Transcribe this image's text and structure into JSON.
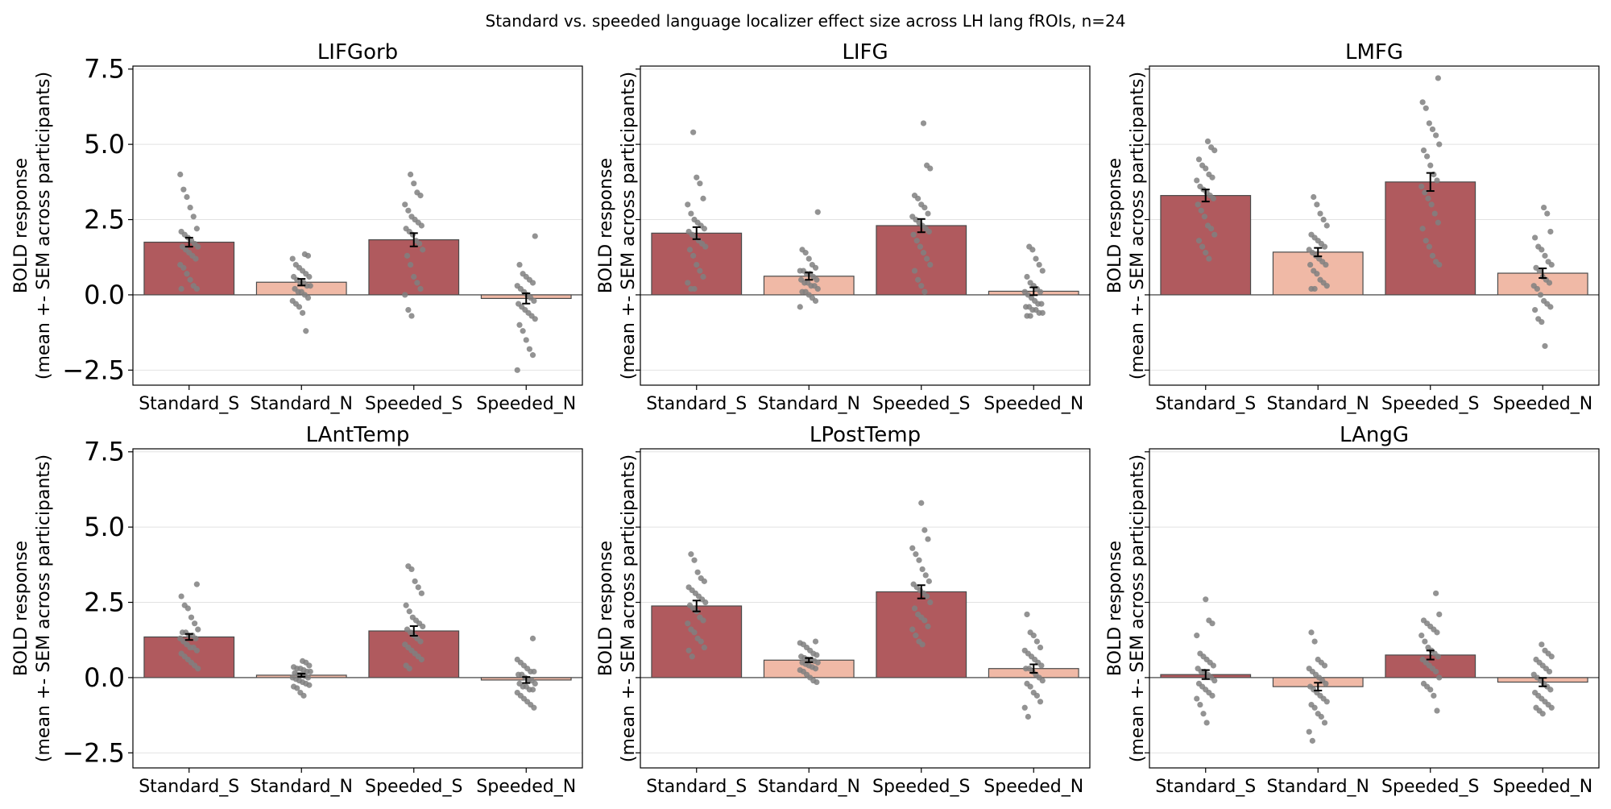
{
  "figure": {
    "suptitle": "Standard vs. speeded language localizer effect size across LH lang fROIs, n=24"
  },
  "chart_data": {
    "type": "bar",
    "title": "Standard vs. speeded language localizer effect size across LH lang fROIs, n=24",
    "categories": [
      "Standard_S",
      "Standard_N",
      "Speeded_S",
      "Speeded_N"
    ],
    "ylabel_line1": "BOLD response",
    "ylabel_line2": "(mean +- SEM across participants)",
    "ylim": [
      -3.0,
      7.6
    ],
    "yticks": [
      -2.5,
      0.0,
      2.5,
      5.0,
      7.5
    ],
    "ytick_labels": [
      "−2.5",
      "0.0",
      "2.5",
      "5.0",
      "7.5"
    ],
    "grid": true,
    "colors": {
      "sentence_bar": "#b05a5e",
      "nonword_bar": "#f0b9a6",
      "dot": "#808080",
      "bar_edge": "#4a4a4a",
      "grid": "#e2e2e2"
    },
    "panels": [
      {
        "title": "LIFGorb",
        "means": [
          1.75,
          0.42,
          1.83,
          -0.12
        ],
        "sems": [
          0.15,
          0.11,
          0.22,
          0.17
        ],
        "points": [
          [
            4.0,
            3.5,
            3.25,
            2.9,
            2.6,
            2.2,
            2.1,
            2.0,
            1.9,
            1.8,
            1.7,
            1.6,
            1.6,
            1.5,
            1.4,
            1.3,
            1.2,
            1.0,
            0.9,
            0.7,
            0.5,
            0.3,
            0.2,
            0.2
          ],
          [
            1.35,
            1.3,
            1.2,
            1.0,
            0.9,
            0.8,
            0.7,
            0.6,
            0.6,
            0.5,
            0.4,
            0.4,
            0.3,
            0.3,
            0.2,
            0.1,
            0.1,
            0.0,
            -0.1,
            -0.2,
            -0.3,
            -0.4,
            -0.6,
            -1.2
          ],
          [
            4.0,
            3.7,
            3.4,
            3.3,
            3.0,
            2.8,
            2.6,
            2.5,
            2.4,
            2.3,
            2.2,
            2.1,
            2.0,
            1.8,
            1.7,
            1.5,
            1.3,
            1.0,
            0.6,
            0.4,
            0.2,
            0.0,
            -0.5,
            -0.7
          ],
          [
            1.95,
            1.0,
            0.7,
            0.6,
            0.5,
            0.4,
            0.3,
            0.2,
            0.1,
            0.0,
            -0.1,
            -0.2,
            -0.3,
            -0.4,
            -0.5,
            -0.6,
            -0.7,
            -0.8,
            -1.0,
            -1.2,
            -1.5,
            -1.8,
            -2.0,
            -2.5
          ]
        ]
      },
      {
        "title": "LIFG",
        "means": [
          2.05,
          0.62,
          2.3,
          0.12
        ],
        "sems": [
          0.2,
          0.12,
          0.22,
          0.13
        ],
        "points": [
          [
            5.4,
            3.9,
            3.7,
            3.2,
            3.0,
            2.7,
            2.5,
            2.4,
            2.3,
            2.2,
            2.1,
            2.0,
            1.9,
            1.8,
            1.7,
            1.6,
            1.5,
            1.3,
            1.0,
            0.8,
            0.6,
            0.4,
            0.2,
            0.2
          ],
          [
            2.75,
            1.5,
            1.4,
            1.2,
            1.0,
            0.9,
            0.8,
            0.8,
            0.7,
            0.7,
            0.6,
            0.5,
            0.5,
            0.4,
            0.4,
            0.3,
            0.3,
            0.2,
            0.1,
            0.1,
            0.0,
            -0.1,
            -0.2,
            -0.4
          ],
          [
            5.7,
            4.3,
            4.2,
            3.3,
            3.2,
            3.0,
            2.9,
            2.7,
            2.6,
            2.5,
            2.4,
            2.3,
            2.2,
            2.1,
            2.0,
            1.8,
            1.6,
            1.4,
            1.2,
            1.0,
            0.8,
            0.5,
            0.3,
            0.1
          ],
          [
            1.6,
            1.5,
            1.2,
            1.0,
            0.8,
            0.6,
            0.4,
            0.3,
            0.2,
            0.1,
            0.1,
            0.0,
            -0.1,
            -0.2,
            -0.3,
            -0.3,
            -0.4,
            -0.4,
            -0.5,
            -0.5,
            -0.6,
            -0.6,
            -0.7,
            -0.7
          ]
        ]
      },
      {
        "title": "LMFG",
        "means": [
          3.3,
          1.42,
          3.75,
          0.72
        ],
        "sems": [
          0.2,
          0.14,
          0.3,
          0.16
        ],
        "points": [
          [
            5.1,
            4.9,
            4.8,
            4.5,
            4.3,
            4.2,
            4.0,
            3.9,
            3.8,
            3.6,
            3.5,
            3.4,
            3.3,
            3.2,
            3.0,
            2.8,
            2.6,
            2.3,
            2.2,
            2.0,
            1.8,
            1.6,
            1.4,
            1.2
          ],
          [
            3.25,
            3.0,
            2.7,
            2.5,
            2.3,
            2.0,
            1.9,
            1.8,
            1.7,
            1.6,
            1.5,
            1.4,
            1.3,
            1.2,
            1.1,
            1.0,
            1.0,
            0.8,
            0.7,
            0.5,
            0.4,
            0.3,
            0.2,
            0.2
          ],
          [
            7.2,
            6.4,
            6.2,
            5.7,
            5.5,
            5.3,
            5.0,
            4.8,
            4.6,
            4.3,
            4.0,
            3.8,
            3.6,
            3.4,
            3.2,
            3.0,
            2.7,
            2.4,
            2.2,
            1.8,
            1.6,
            1.3,
            1.1,
            1.0
          ],
          [
            2.9,
            2.7,
            2.1,
            1.9,
            1.6,
            1.5,
            1.3,
            1.1,
            1.0,
            0.9,
            0.8,
            0.6,
            0.5,
            0.4,
            0.3,
            0.2,
            0.0,
            -0.2,
            -0.3,
            -0.4,
            -0.5,
            -0.8,
            -0.9,
            -1.7
          ]
        ]
      },
      {
        "title": "LAntTemp",
        "means": [
          1.35,
          0.08,
          1.55,
          -0.08
        ],
        "sems": [
          0.1,
          0.05,
          0.16,
          0.1
        ],
        "points": [
          [
            3.1,
            2.7,
            2.4,
            2.3,
            2.0,
            1.8,
            1.6,
            1.5,
            1.5,
            1.4,
            1.4,
            1.3,
            1.3,
            1.2,
            1.1,
            1.0,
            1.0,
            0.9,
            0.8,
            0.7,
            0.6,
            0.5,
            0.4,
            0.3
          ],
          [
            0.55,
            0.5,
            0.4,
            0.35,
            0.3,
            0.3,
            0.25,
            0.2,
            0.2,
            0.15,
            0.1,
            0.1,
            0.05,
            0.0,
            0.0,
            -0.05,
            -0.1,
            -0.15,
            -0.2,
            -0.25,
            -0.3,
            -0.35,
            -0.5,
            -0.6
          ],
          [
            3.7,
            3.6,
            3.2,
            3.0,
            2.8,
            2.4,
            2.2,
            2.0,
            1.9,
            1.8,
            1.7,
            1.6,
            1.5,
            1.4,
            1.3,
            1.2,
            1.1,
            1.0,
            0.9,
            0.8,
            0.7,
            0.6,
            0.4,
            0.3
          ],
          [
            1.3,
            0.6,
            0.5,
            0.4,
            0.3,
            0.2,
            0.2,
            0.1,
            0.1,
            0.0,
            -0.1,
            -0.1,
            -0.2,
            -0.2,
            -0.3,
            -0.3,
            -0.4,
            -0.4,
            -0.5,
            -0.6,
            -0.7,
            -0.8,
            -0.9,
            -1.0
          ]
        ]
      },
      {
        "title": "LPostTemp",
        "means": [
          2.38,
          0.58,
          2.85,
          0.3
        ],
        "sems": [
          0.18,
          0.07,
          0.22,
          0.14
        ],
        "points": [
          [
            4.1,
            3.9,
            3.5,
            3.3,
            3.2,
            3.0,
            2.9,
            2.8,
            2.7,
            2.6,
            2.5,
            2.4,
            2.3,
            2.2,
            2.0,
            1.9,
            1.8,
            1.6,
            1.5,
            1.3,
            1.2,
            1.0,
            0.9,
            0.7
          ],
          [
            1.2,
            1.15,
            1.1,
            1.0,
            0.9,
            0.8,
            0.75,
            0.7,
            0.65,
            0.6,
            0.6,
            0.55,
            0.5,
            0.5,
            0.45,
            0.4,
            0.35,
            0.3,
            0.25,
            0.2,
            0.1,
            0.0,
            -0.1,
            -0.15
          ],
          [
            5.8,
            4.9,
            4.6,
            4.3,
            4.1,
            3.9,
            3.6,
            3.4,
            3.2,
            3.1,
            3.0,
            2.9,
            2.8,
            2.7,
            2.5,
            2.3,
            2.1,
            2.0,
            1.9,
            1.7,
            1.6,
            1.4,
            1.2,
            1.1
          ],
          [
            2.1,
            1.5,
            1.4,
            1.2,
            1.0,
            0.9,
            0.8,
            0.7,
            0.6,
            0.5,
            0.4,
            0.3,
            0.3,
            0.2,
            0.1,
            0.0,
            -0.1,
            -0.2,
            -0.3,
            -0.5,
            -0.6,
            -0.8,
            -1.0,
            -1.3
          ]
        ]
      },
      {
        "title": "LAngG",
        "means": [
          0.1,
          -0.3,
          0.75,
          -0.15
        ],
        "sems": [
          0.15,
          0.13,
          0.15,
          0.14
        ],
        "points": [
          [
            2.6,
            1.9,
            1.8,
            1.4,
            0.8,
            0.7,
            0.6,
            0.5,
            0.4,
            0.3,
            0.2,
            0.2,
            0.1,
            0.0,
            -0.1,
            -0.2,
            -0.3,
            -0.4,
            -0.5,
            -0.6,
            -0.7,
            -0.9,
            -1.2,
            -1.5
          ],
          [
            1.5,
            1.2,
            0.6,
            0.5,
            0.4,
            0.3,
            0.2,
            0.1,
            0.0,
            -0.1,
            -0.2,
            -0.3,
            -0.4,
            -0.5,
            -0.6,
            -0.7,
            -0.8,
            -0.9,
            -1.0,
            -1.2,
            -1.3,
            -1.5,
            -1.8,
            -2.1
          ],
          [
            2.8,
            2.1,
            1.9,
            1.8,
            1.7,
            1.6,
            1.5,
            1.4,
            1.2,
            1.0,
            0.9,
            0.8,
            0.7,
            0.6,
            0.5,
            0.4,
            0.3,
            0.2,
            0.0,
            -0.2,
            -0.3,
            -0.4,
            -0.6,
            -1.1
          ],
          [
            1.1,
            0.9,
            0.8,
            0.7,
            0.6,
            0.5,
            0.4,
            0.3,
            0.2,
            0.1,
            0.0,
            -0.1,
            -0.2,
            -0.3,
            -0.4,
            -0.5,
            -0.6,
            -0.7,
            -0.8,
            -0.9,
            -1.0,
            -1.0,
            -1.1,
            -1.2
          ]
        ]
      }
    ]
  }
}
